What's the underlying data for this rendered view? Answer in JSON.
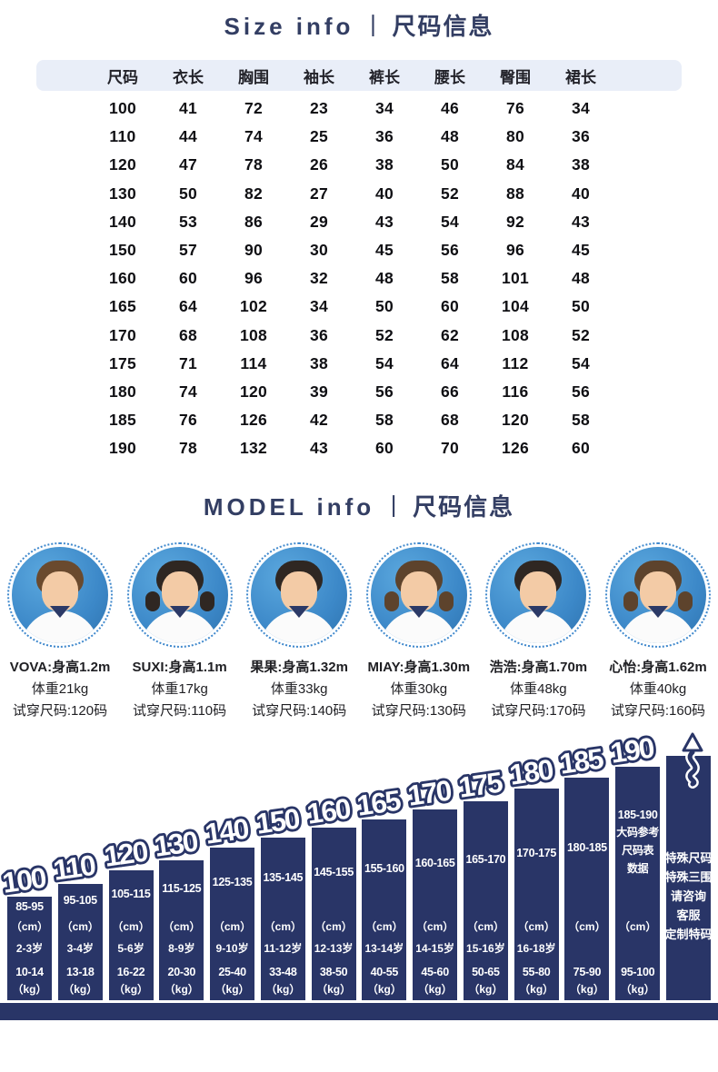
{
  "titles": {
    "size_en": "Size  info",
    "size_sep": "丨",
    "size_zh": "尺码信息",
    "model_en": "MODEL  info",
    "model_sep": "丨",
    "model_zh": "尺码信息"
  },
  "colors": {
    "navy": "#293567",
    "title_navy": "#333e63",
    "table_header_bg": "#e9eef8",
    "photo_blue": "#3c88c8",
    "dotted_ring_blue": "#4089cd"
  },
  "size_table": {
    "headers": [
      "尺码",
      "衣长",
      "胸围",
      "袖长",
      "裤长",
      "腰长",
      "臀围",
      "裙长"
    ],
    "rows": [
      [
        "100",
        "41",
        "72",
        "23",
        "34",
        "46",
        "76",
        "34"
      ],
      [
        "110",
        "44",
        "74",
        "25",
        "36",
        "48",
        "80",
        "36"
      ],
      [
        "120",
        "47",
        "78",
        "26",
        "38",
        "50",
        "84",
        "38"
      ],
      [
        "130",
        "50",
        "82",
        "27",
        "40",
        "52",
        "88",
        "40"
      ],
      [
        "140",
        "53",
        "86",
        "29",
        "43",
        "54",
        "92",
        "43"
      ],
      [
        "150",
        "57",
        "90",
        "30",
        "45",
        "56",
        "96",
        "45"
      ],
      [
        "160",
        "60",
        "96",
        "32",
        "48",
        "58",
        "101",
        "48"
      ],
      [
        "165",
        "64",
        "102",
        "34",
        "50",
        "60",
        "104",
        "50"
      ],
      [
        "170",
        "68",
        "108",
        "36",
        "52",
        "62",
        "108",
        "52"
      ],
      [
        "175",
        "71",
        "114",
        "38",
        "54",
        "64",
        "112",
        "54"
      ],
      [
        "180",
        "74",
        "120",
        "39",
        "56",
        "66",
        "116",
        "56"
      ],
      [
        "185",
        "76",
        "126",
        "42",
        "58",
        "68",
        "120",
        "58"
      ],
      [
        "190",
        "78",
        "132",
        "43",
        "60",
        "70",
        "126",
        "60"
      ]
    ]
  },
  "models": [
    {
      "line1": "VOVA:身高1.2m",
      "line2": "体重21kg",
      "line3": "试穿尺码:120码"
    },
    {
      "line1": "SUXI:身高1.1m",
      "line2": "体重17kg",
      "line3": "试穿尺码:110码"
    },
    {
      "line1": "果果:身高1.32m",
      "line2": "体重33kg",
      "line3": "试穿尺码:140码"
    },
    {
      "line1": "MIAY:身高1.30m",
      "line2": "体重30kg",
      "line3": "试穿尺码:130码"
    },
    {
      "line1": "浩浩:身高1.70m",
      "line2": "体重48kg",
      "line3": "试穿尺码:170码"
    },
    {
      "line1": "心怡:身高1.62m",
      "line2": "体重40kg",
      "line3": "试穿尺码:160码"
    }
  ],
  "chart_data": {
    "type": "bar",
    "title": "",
    "xlabel": "",
    "ylabel": "",
    "grid": false,
    "legend": "none",
    "bar_color": "#293567",
    "cm_unit_label": "（cm）",
    "kg_unit_label": "（kg）",
    "categories": [
      "100",
      "110",
      "120",
      "130",
      "140",
      "150",
      "160",
      "165",
      "170",
      "175",
      "180",
      "185",
      "190",
      "特殊尺码"
    ],
    "bars": [
      {
        "size": "100",
        "height_cm": "85-95",
        "age": "2-3岁",
        "weight_kg": "10-14"
      },
      {
        "size": "110",
        "height_cm": "95-105",
        "age": "3-4岁",
        "weight_kg": "13-18"
      },
      {
        "size": "120",
        "height_cm": "105-115",
        "age": "5-6岁",
        "weight_kg": "16-22"
      },
      {
        "size": "130",
        "height_cm": "115-125",
        "age": "8-9岁",
        "weight_kg": "20-30"
      },
      {
        "size": "140",
        "height_cm": "125-135",
        "age": "9-10岁",
        "weight_kg": "25-40"
      },
      {
        "size": "150",
        "height_cm": "135-145",
        "age": "11-12岁",
        "weight_kg": "33-48"
      },
      {
        "size": "160",
        "height_cm": "145-155",
        "age": "12-13岁",
        "weight_kg": "38-50"
      },
      {
        "size": "165",
        "height_cm": "155-160",
        "age": "13-14岁",
        "weight_kg": "40-55"
      },
      {
        "size": "170",
        "height_cm": "160-165",
        "age": "14-15岁",
        "weight_kg": "45-60"
      },
      {
        "size": "175",
        "height_cm": "165-170",
        "age": "15-16岁",
        "weight_kg": "50-65"
      },
      {
        "size": "180",
        "height_cm": "170-175",
        "age": "16-18岁",
        "weight_kg": "55-80"
      },
      {
        "size": "185",
        "height_cm": "180-185",
        "age": "",
        "weight_kg": "75-90"
      },
      {
        "size": "190",
        "height_cm": "185-190",
        "notes": [
          "大码参考",
          "尺码表",
          "数据"
        ],
        "age": "",
        "weight_kg": "95-100"
      },
      {
        "size": "",
        "special_lines": [
          "特殊尺码",
          "特殊三围",
          "请咨询",
          "客服",
          "定制特码"
        ],
        "arrow": true,
        "weight_kg": ""
      }
    ]
  }
}
